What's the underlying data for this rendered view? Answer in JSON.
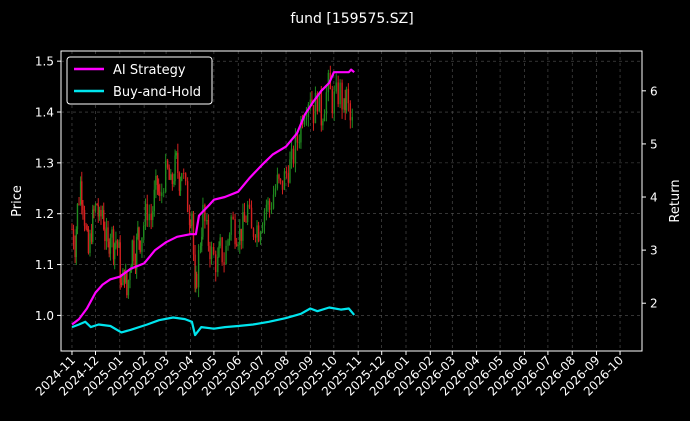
{
  "chart_data": {
    "type": "line",
    "title": "fund [159575.SZ]",
    "ylabel": "Price",
    "y2label": "Return",
    "ylim": [
      0.93,
      1.52
    ],
    "y2lim": [
      1.1,
      6.75
    ],
    "yticks": [
      "1.0",
      "1.1",
      "1.2",
      "1.3",
      "1.4",
      "1.5"
    ],
    "y2ticks": [
      "2",
      "3",
      "4",
      "5",
      "6"
    ],
    "xticks": [
      "2024-11",
      "2024-12",
      "2025-01",
      "2025-02",
      "2025-03",
      "2025-04",
      "2025-05",
      "2025-06",
      "2025-07",
      "2025-08",
      "2025-09",
      "2025-10",
      "2025-11",
      "2025-12",
      "2026-01",
      "2026-02",
      "2026-03",
      "2026-04",
      "2026-05",
      "2026-06",
      "2026-07",
      "2026-08",
      "2026-09",
      "2026-10"
    ],
    "grid": true,
    "legend_position": "top-left",
    "candles": {
      "up_color": "#1f8a1f",
      "down_color": "#d42020",
      "close_path": [
        [
          "2024-11-01",
          1.17
        ],
        [
          "2024-11-05",
          1.14
        ],
        [
          "2024-11-08",
          1.21
        ],
        [
          "2024-11-12",
          1.26
        ],
        [
          "2024-11-15",
          1.23
        ],
        [
          "2024-11-19",
          1.16
        ],
        [
          "2024-11-22",
          1.12
        ],
        [
          "2024-11-26",
          1.17
        ],
        [
          "2024-11-29",
          1.2
        ],
        [
          "2024-12-03",
          1.22
        ],
        [
          "2024-12-06",
          1.18
        ],
        [
          "2024-12-10",
          1.21
        ],
        [
          "2024-12-13",
          1.16
        ],
        [
          "2024-12-17",
          1.13
        ],
        [
          "2024-12-20",
          1.17
        ],
        [
          "2024-12-24",
          1.14
        ],
        [
          "2024-12-27",
          1.15
        ],
        [
          "2024-12-31",
          1.12
        ],
        [
          "2025-01-03",
          1.05
        ],
        [
          "2025-01-07",
          1.09
        ],
        [
          "2025-01-10",
          1.04
        ],
        [
          "2025-01-14",
          1.1
        ],
        [
          "2025-01-17",
          1.14
        ],
        [
          "2025-01-21",
          1.12
        ],
        [
          "2025-01-24",
          1.16
        ],
        [
          "2025-01-27",
          1.15
        ],
        [
          "2025-02-05",
          1.21
        ],
        [
          "2025-02-10",
          1.19
        ],
        [
          "2025-02-14",
          1.23
        ],
        [
          "2025-02-18",
          1.26
        ],
        [
          "2025-02-21",
          1.22
        ],
        [
          "2025-02-26",
          1.27
        ],
        [
          "2025-03-03",
          1.28
        ],
        [
          "2025-03-07",
          1.25
        ],
        [
          "2025-03-11",
          1.28
        ],
        [
          "2025-03-14",
          1.3
        ],
        [
          "2025-03-18",
          1.27
        ],
        [
          "2025-03-21",
          1.29
        ],
        [
          "2025-03-26",
          1.24
        ],
        [
          "2025-03-31",
          1.2
        ],
        [
          "2025-04-03",
          1.21
        ],
        [
          "2025-04-07",
          1.03
        ],
        [
          "2025-04-09",
          1.08
        ],
        [
          "2025-04-14",
          1.15
        ],
        [
          "2025-04-17",
          1.2
        ],
        [
          "2025-04-22",
          1.16
        ],
        [
          "2025-04-28",
          1.12
        ],
        [
          "2025-05-06",
          1.1
        ],
        [
          "2025-05-09",
          1.13
        ],
        [
          "2025-05-14",
          1.11
        ],
        [
          "2025-05-19",
          1.15
        ],
        [
          "2025-05-23",
          1.19
        ],
        [
          "2025-05-28",
          1.17
        ],
        [
          "2025-06-03",
          1.16
        ],
        [
          "2025-06-09",
          1.18
        ],
        [
          "2025-06-13",
          1.21
        ],
        [
          "2025-06-18",
          1.16
        ],
        [
          "2025-06-23",
          1.18
        ],
        [
          "2025-06-27",
          1.17
        ],
        [
          "2025-07-02",
          1.2
        ],
        [
          "2025-07-07",
          1.22
        ],
        [
          "2025-07-11",
          1.21
        ],
        [
          "2025-07-16",
          1.24
        ],
        [
          "2025-07-21",
          1.26
        ],
        [
          "2025-07-25",
          1.25
        ],
        [
          "2025-07-30",
          1.27
        ],
        [
          "2025-08-04",
          1.29
        ],
        [
          "2025-08-08",
          1.3
        ],
        [
          "2025-08-13",
          1.33
        ],
        [
          "2025-08-18",
          1.36
        ],
        [
          "2025-08-22",
          1.4
        ],
        [
          "2025-08-27",
          1.42
        ],
        [
          "2025-09-01",
          1.44
        ],
        [
          "2025-09-05",
          1.4
        ],
        [
          "2025-09-10",
          1.43
        ],
        [
          "2025-09-15",
          1.39
        ],
        [
          "2025-09-19",
          1.42
        ],
        [
          "2025-09-24",
          1.45
        ],
        [
          "2025-09-29",
          1.42
        ],
        [
          "2025-10-09",
          1.44
        ],
        [
          "2025-10-14",
          1.4
        ],
        [
          "2025-10-17",
          1.43
        ],
        [
          "2025-10-22",
          1.38
        ],
        [
          "2025-10-27",
          1.37
        ]
      ]
    },
    "series": [
      {
        "name": "AI Strategy",
        "color": "#ff00ff",
        "axis": "right",
        "points": [
          [
            "2024-11-01",
            1.6
          ],
          [
            "2024-11-10",
            1.7
          ],
          [
            "2024-11-20",
            1.9
          ],
          [
            "2024-12-01",
            2.2
          ],
          [
            "2024-12-10",
            2.35
          ],
          [
            "2024-12-20",
            2.45
          ],
          [
            "2025-01-01",
            2.5
          ],
          [
            "2025-01-15",
            2.65
          ],
          [
            "2025-02-01",
            2.75
          ],
          [
            "2025-02-15",
            3.0
          ],
          [
            "2025-03-01",
            3.15
          ],
          [
            "2025-03-15",
            3.25
          ],
          [
            "2025-04-01",
            3.3
          ],
          [
            "2025-04-08",
            3.3
          ],
          [
            "2025-04-12",
            3.65
          ],
          [
            "2025-04-25",
            3.85
          ],
          [
            "2025-05-01",
            3.95
          ],
          [
            "2025-05-15",
            4.0
          ],
          [
            "2025-06-01",
            4.1
          ],
          [
            "2025-06-15",
            4.35
          ],
          [
            "2025-07-01",
            4.6
          ],
          [
            "2025-07-15",
            4.8
          ],
          [
            "2025-08-01",
            4.95
          ],
          [
            "2025-08-15",
            5.2
          ],
          [
            "2025-08-25",
            5.55
          ],
          [
            "2025-09-05",
            5.8
          ],
          [
            "2025-09-15",
            6.0
          ],
          [
            "2025-09-25",
            6.15
          ],
          [
            "2025-10-01",
            6.35
          ],
          [
            "2025-10-10",
            6.35
          ],
          [
            "2025-10-20",
            6.35
          ],
          [
            "2025-10-23",
            6.4
          ],
          [
            "2025-10-27",
            6.35
          ]
        ]
      },
      {
        "name": "Buy-and-Hold",
        "color": "#00e5ee",
        "axis": "right",
        "points": [
          [
            "2024-11-01",
            1.55
          ],
          [
            "2024-11-10",
            1.6
          ],
          [
            "2024-11-18",
            1.65
          ],
          [
            "2024-11-25",
            1.55
          ],
          [
            "2024-12-05",
            1.6
          ],
          [
            "2024-12-20",
            1.57
          ],
          [
            "2025-01-03",
            1.45
          ],
          [
            "2025-01-15",
            1.5
          ],
          [
            "2025-02-05",
            1.6
          ],
          [
            "2025-02-20",
            1.68
          ],
          [
            "2025-03-10",
            1.73
          ],
          [
            "2025-03-25",
            1.7
          ],
          [
            "2025-04-03",
            1.65
          ],
          [
            "2025-04-07",
            1.4
          ],
          [
            "2025-04-15",
            1.55
          ],
          [
            "2025-05-01",
            1.52
          ],
          [
            "2025-05-15",
            1.55
          ],
          [
            "2025-06-01",
            1.57
          ],
          [
            "2025-06-20",
            1.6
          ],
          [
            "2025-07-10",
            1.65
          ],
          [
            "2025-08-01",
            1.72
          ],
          [
            "2025-08-20",
            1.8
          ],
          [
            "2025-09-01",
            1.9
          ],
          [
            "2025-09-10",
            1.85
          ],
          [
            "2025-09-25",
            1.92
          ],
          [
            "2025-10-10",
            1.88
          ],
          [
            "2025-10-20",
            1.9
          ],
          [
            "2025-10-27",
            1.78
          ]
        ]
      }
    ]
  }
}
